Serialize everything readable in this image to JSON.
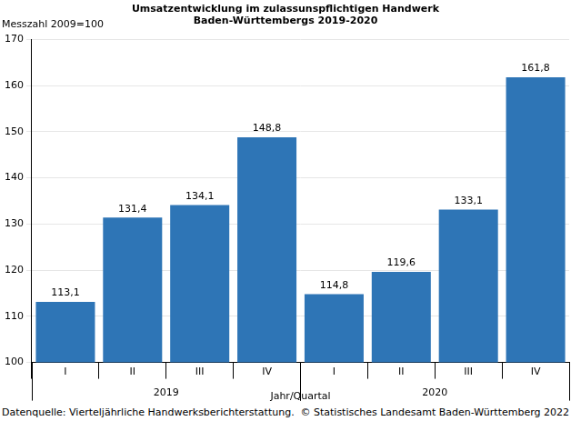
{
  "chart_data": {
    "type": "bar",
    "title": [
      "Umsatzentwicklung im zulassunspflichtigen Handwerk",
      "Baden-Württembergs 2019-2020"
    ],
    "y_label": "Messzahl 2009=100",
    "x_label": "Jahr/Quartal",
    "categories": [
      "I",
      "II",
      "III",
      "IV",
      "I",
      "II",
      "III",
      "IV"
    ],
    "category_groups": [
      "2019",
      "2019",
      "2019",
      "2019",
      "2020",
      "2020",
      "2020",
      "2020"
    ],
    "values": [
      113.1,
      131.4,
      134.1,
      148.8,
      114.8,
      119.6,
      133.1,
      161.8
    ],
    "value_labels": [
      "113,1",
      "131,4",
      "134,1",
      "148,8",
      "114,8",
      "119,6",
      "133,1",
      "161,8"
    ],
    "data_labels": true,
    "color": "#2e75b6",
    "ylim": [
      100,
      170
    ],
    "yticks": [
      100,
      110,
      120,
      130,
      140,
      150,
      160,
      170
    ],
    "grid": true
  },
  "footer": {
    "source": "Datenquelle: Vierteljährliche Handwerksberichterstattung.",
    "copyright": "© Statistisches Landesamt Baden-Württemberg 2022"
  }
}
